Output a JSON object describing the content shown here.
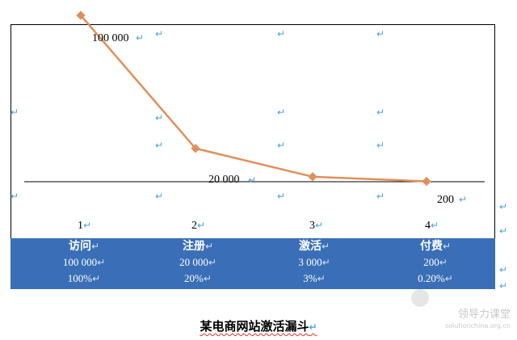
{
  "chart_data": {
    "type": "line",
    "title": "某电商网站激活漏斗",
    "categories": [
      "1",
      "2",
      "3",
      "4"
    ],
    "series": [
      {
        "values": [
          100000,
          20000,
          3000,
          200
        ],
        "color": "#e0905a"
      }
    ],
    "data_labels": [
      "100 000",
      "20 000",
      "",
      "200"
    ],
    "reference_line": {
      "value": 20000,
      "color": "#000000"
    },
    "table": {
      "stages": [
        "访问",
        "注册",
        "激活",
        "付费"
      ],
      "counts": [
        "100 000",
        "20 000",
        "3 000",
        "200"
      ],
      "rates": [
        "100%",
        "20%",
        "3%",
        "0.20%"
      ],
      "background": "#3a6fb7"
    },
    "ylim": [
      0,
      100000
    ],
    "grid": false,
    "legend": "none"
  },
  "paragraph_mark": "↵",
  "watermark": {
    "line1": "领导力课堂",
    "line2": "solutionchina.org.cn"
  }
}
